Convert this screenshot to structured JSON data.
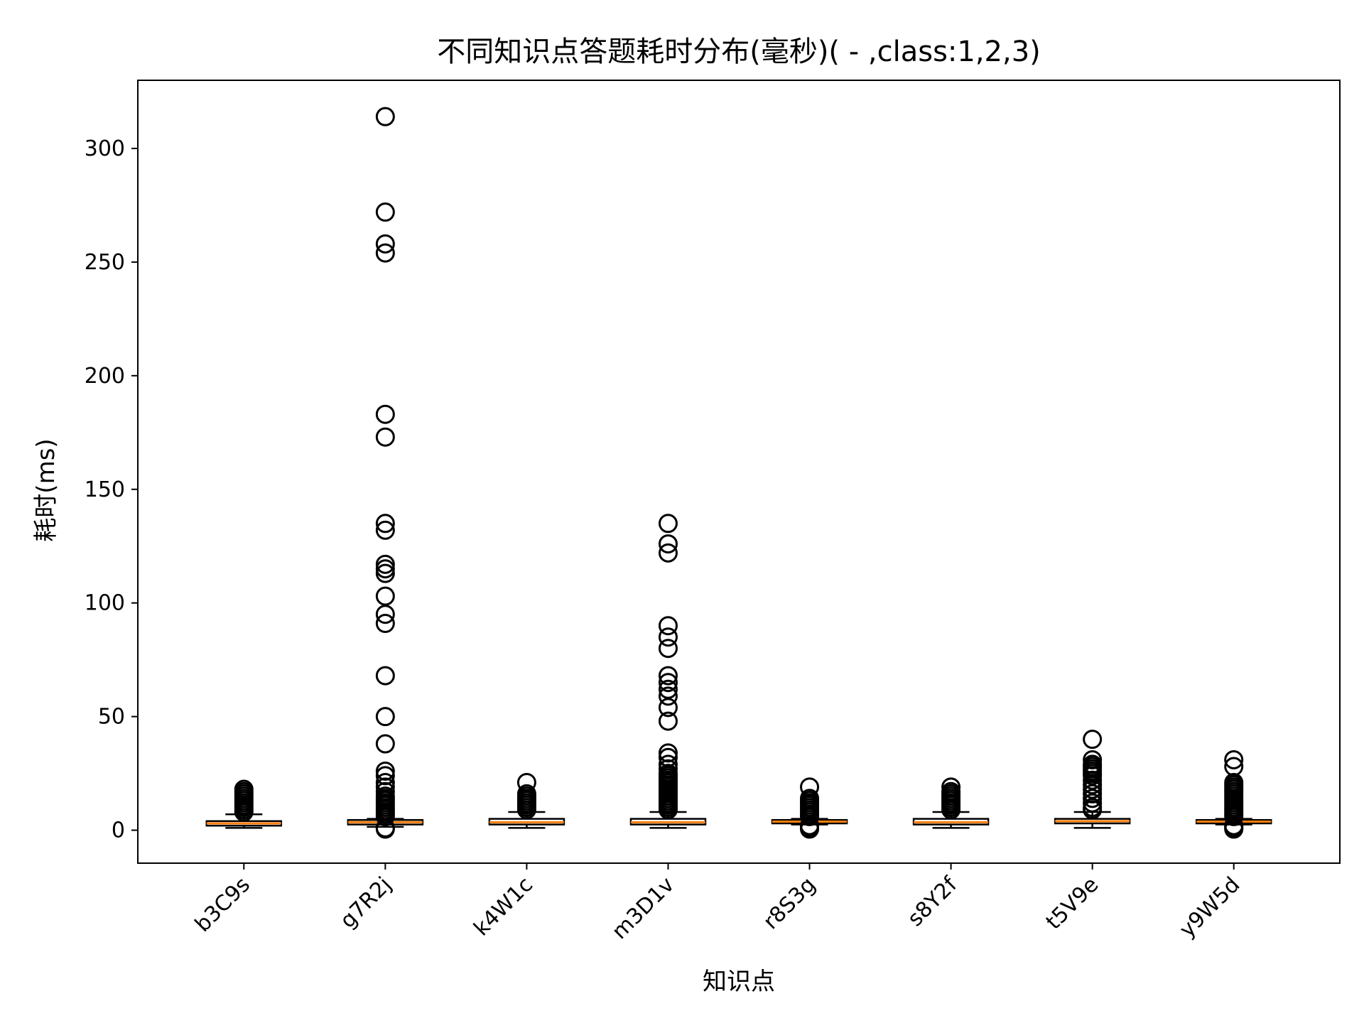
{
  "chart_data": {
    "type": "boxplot",
    "title": "不同知识点答题耗时分布(毫秒)( - ,class:1,2,3)",
    "xlabel": "知识点",
    "ylabel": "耗时(ms)",
    "ylim": [
      -14.5,
      330
    ],
    "y_ticks": [
      0,
      50,
      100,
      150,
      200,
      250,
      300
    ],
    "grid": false,
    "median_color": "#ff7f0e",
    "box_color": "#000000",
    "categories": [
      "b3C9s",
      "g7R2j",
      "k4W1c",
      "m3D1v",
      "r8S3g",
      "s8Y2f",
      "t5V9e",
      "y9W5d"
    ],
    "boxes": [
      {
        "name": "b3C9s",
        "whisker_low": 1,
        "q1": 2,
        "median": 3,
        "q3": 4,
        "whisker_high": 7,
        "outliers": [
          8,
          9,
          10,
          11,
          12,
          13,
          14,
          15,
          16,
          17,
          18
        ]
      },
      {
        "name": "g7R2j",
        "whisker_low": 1.5,
        "q1": 2.5,
        "median": 3.5,
        "q3": 4.5,
        "whisker_high": 5,
        "outliers": [
          0.5,
          1,
          6,
          7,
          8,
          9,
          10,
          11,
          12,
          13,
          14,
          15,
          17,
          19,
          21,
          24,
          26,
          38,
          50,
          68,
          91,
          95,
          103,
          113,
          115,
          117,
          132,
          135,
          173,
          183,
          254,
          258,
          272,
          314
        ]
      },
      {
        "name": "k4W1c",
        "whisker_low": 1,
        "q1": 2.5,
        "median": 3.5,
        "q3": 5,
        "whisker_high": 8,
        "outliers": [
          9,
          10,
          11,
          12,
          13,
          14,
          15,
          16,
          21
        ]
      },
      {
        "name": "m3D1v",
        "whisker_low": 1,
        "q1": 2.5,
        "median": 3.5,
        "q3": 5,
        "whisker_high": 8,
        "outliers": [
          9,
          10,
          11,
          12,
          13,
          14,
          15,
          16,
          17,
          18,
          19,
          20,
          21,
          22,
          23,
          24,
          25,
          27,
          29,
          32,
          34,
          48,
          54,
          59,
          62,
          65,
          68,
          80,
          85,
          90,
          122,
          126,
          135
        ]
      },
      {
        "name": "r8S3g",
        "whisker_low": 2.5,
        "q1": 3,
        "median": 3.8,
        "q3": 4.5,
        "whisker_high": 5,
        "outliers": [
          0.5,
          1,
          1.5,
          2,
          6,
          7,
          8,
          9,
          10,
          11,
          12,
          13,
          14,
          19
        ]
      },
      {
        "name": "s8Y2f",
        "whisker_low": 1,
        "q1": 2.5,
        "median": 3.5,
        "q3": 5,
        "whisker_high": 8,
        "outliers": [
          9,
          10,
          11,
          12,
          13,
          14,
          15,
          16,
          17,
          19
        ]
      },
      {
        "name": "t5V9e",
        "whisker_low": 1,
        "q1": 3,
        "median": 4,
        "q3": 5,
        "whisker_high": 8,
        "outliers": [
          9,
          10,
          12,
          14,
          16,
          18,
          20,
          22,
          24,
          25,
          26,
          27,
          28,
          29,
          31,
          40
        ]
      },
      {
        "name": "y9W5d",
        "whisker_low": 2.5,
        "q1": 3,
        "median": 3.8,
        "q3": 4.5,
        "whisker_high": 5,
        "outliers": [
          0.5,
          1,
          1.5,
          2,
          6,
          7,
          8,
          9,
          10,
          11,
          12,
          13,
          14,
          15,
          16,
          17,
          18,
          19,
          20,
          21,
          28,
          31
        ]
      }
    ]
  }
}
